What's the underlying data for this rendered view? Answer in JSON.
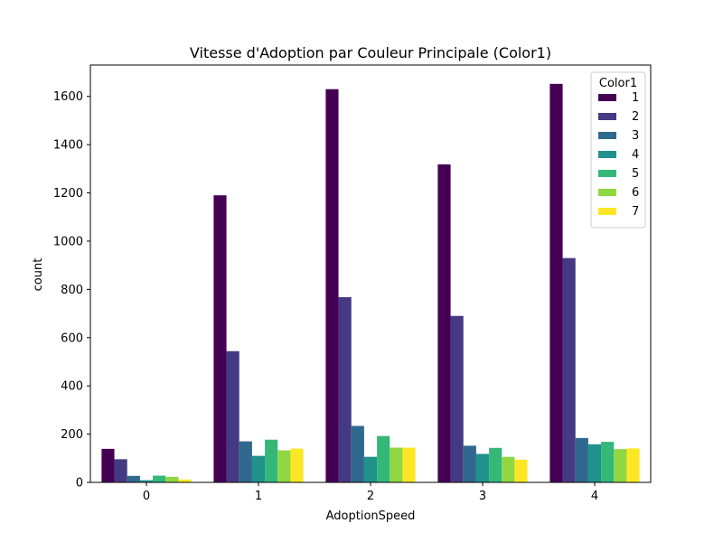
{
  "chart_data": {
    "type": "bar",
    "title": "Vitesse d'Adoption par Couleur Principale (Color1)",
    "xlabel": "AdoptionSpeed",
    "ylabel": "count",
    "categories": [
      "0",
      "1",
      "2",
      "3",
      "4"
    ],
    "ylim": [
      0,
      1730
    ],
    "yticks": [
      0,
      200,
      400,
      600,
      800,
      1000,
      1200,
      1400,
      1600
    ],
    "grid": false,
    "legend": {
      "title": "Color1",
      "placement": "top-right"
    },
    "series": [
      {
        "name": "1",
        "color": "#440154",
        "values": [
          139,
          1190,
          1630,
          1318,
          1652
        ]
      },
      {
        "name": "2",
        "color": "#443983",
        "values": [
          96,
          544,
          768,
          690,
          930
        ]
      },
      {
        "name": "3",
        "color": "#31688e",
        "values": [
          27,
          170,
          234,
          152,
          184
        ]
      },
      {
        "name": "4",
        "color": "#21918c",
        "values": [
          9,
          110,
          106,
          118,
          158
        ]
      },
      {
        "name": "5",
        "color": "#35b779",
        "values": [
          28,
          177,
          192,
          143,
          168
        ]
      },
      {
        "name": "6",
        "color": "#90d743",
        "values": [
          23,
          133,
          144,
          106,
          138
        ]
      },
      {
        "name": "7",
        "color": "#fde725",
        "values": [
          12,
          140,
          144,
          94,
          141
        ]
      }
    ]
  }
}
